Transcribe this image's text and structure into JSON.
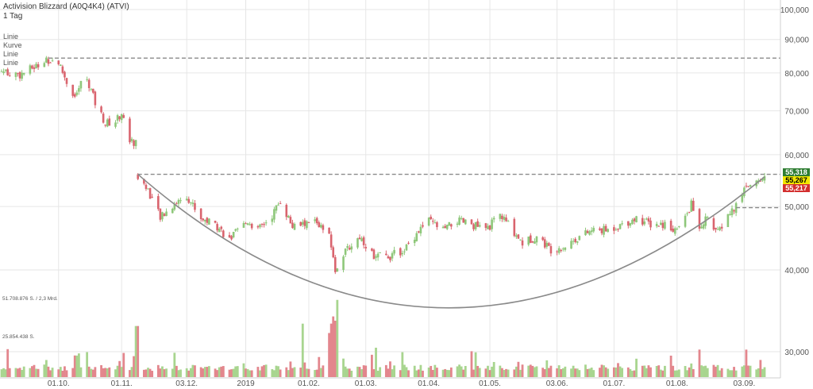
{
  "header": {
    "title": "Activision Blizzard (A0Q4K4) (ATVI)",
    "interval": "1 Tag"
  },
  "drawing_tools": [
    "Linie",
    "Kurve",
    "Linie",
    "Linie"
  ],
  "volume_labels": [
    "51.708.876 S. / 2,3 Mrd.",
    "25.854.438 S."
  ],
  "price_badges": [
    {
      "value": "55,318",
      "bg": "#2e7d32",
      "color": "#ffffff"
    },
    {
      "value": "55,267",
      "bg": "#f2e600",
      "color": "#000000"
    },
    {
      "value": "55,217",
      "bg": "#d32f2f",
      "color": "#ffffff"
    }
  ],
  "colors": {
    "up": "#8ec77a",
    "down": "#d9646e",
    "up_vol": "#a8d58f",
    "down_vol": "#e3868d",
    "grid": "#e6e6e6",
    "drawing": "#8a8a8a"
  },
  "chart_data": {
    "type": "candlestick",
    "ylim": [
      27,
      100
    ],
    "y_scale": "log",
    "yticks": [
      "30,000",
      "40,000",
      "50,000",
      "60,000",
      "70,000",
      "80,000",
      "90,000",
      "100,000"
    ],
    "ytick_values": [
      30,
      40,
      50,
      60,
      70,
      80,
      90,
      100
    ],
    "xticks": [
      "01.10.",
      "01.11.",
      "03.12.",
      "2019",
      "01.02.",
      "01.03.",
      "01.04.",
      "01.05.",
      "03.06.",
      "01.07.",
      "01.08.",
      "03.09."
    ],
    "xtick_dates": [
      "2018-10-01",
      "2018-11-01",
      "2018-12-03",
      "2019-01-01",
      "2019-02-01",
      "2019-03-01",
      "2019-04-01",
      "2019-05-01",
      "2019-06-03",
      "2019-07-01",
      "2019-08-01",
      "2019-09-03"
    ],
    "x_range": [
      "2018-09-03",
      "2019-09-13"
    ],
    "close_path": [
      [
        "2018-09-03",
        80.5
      ],
      [
        "2018-09-12",
        79.5
      ],
      [
        "2018-09-20",
        82.0
      ],
      [
        "2018-09-26",
        83.8
      ],
      [
        "2018-10-01",
        83.0
      ],
      [
        "2018-10-05",
        77.5
      ],
      [
        "2018-10-09",
        73.5
      ],
      [
        "2018-10-12",
        77.0
      ],
      [
        "2018-10-15",
        78.5
      ],
      [
        "2018-10-19",
        72.0
      ],
      [
        "2018-10-24",
        67.0
      ],
      [
        "2018-10-29",
        67.5
      ],
      [
        "2018-11-01",
        69.5
      ],
      [
        "2018-11-05",
        63.0
      ],
      [
        "2018-11-08",
        62.5
      ],
      [
        "2018-11-09",
        55.5
      ],
      [
        "2018-11-14",
        53.0
      ],
      [
        "2018-11-20",
        48.0
      ],
      [
        "2018-11-27",
        50.5
      ],
      [
        "2018-12-03",
        52.0
      ],
      [
        "2018-12-10",
        48.0
      ],
      [
        "2018-12-17",
        47.0
      ],
      [
        "2018-12-24",
        44.5
      ],
      [
        "2019-01-02",
        47.5
      ],
      [
        "2019-01-07",
        46.0
      ],
      [
        "2019-01-14",
        48.5
      ],
      [
        "2019-01-18",
        51.0
      ],
      [
        "2019-01-24",
        46.5
      ],
      [
        "2019-01-30",
        47.0
      ],
      [
        "2019-02-04",
        47.5
      ],
      [
        "2019-02-11",
        45.0
      ],
      [
        "2019-02-14",
        40.0
      ],
      [
        "2019-02-20",
        43.0
      ],
      [
        "2019-02-26",
        45.0
      ],
      [
        "2019-03-05",
        42.0
      ],
      [
        "2019-03-13",
        42.0
      ],
      [
        "2019-03-20",
        43.0
      ],
      [
        "2019-03-27",
        46.0
      ],
      [
        "2019-04-01",
        47.5
      ],
      [
        "2019-04-08",
        46.0
      ],
      [
        "2019-04-15",
        47.5
      ],
      [
        "2019-04-22",
        47.0
      ],
      [
        "2019-04-29",
        46.0
      ],
      [
        "2019-05-06",
        48.5
      ],
      [
        "2019-05-10",
        47.0
      ],
      [
        "2019-05-17",
        44.0
      ],
      [
        "2019-05-24",
        45.0
      ],
      [
        "2019-05-31",
        43.0
      ],
      [
        "2019-06-07",
        43.5
      ],
      [
        "2019-06-14",
        45.0
      ],
      [
        "2019-06-21",
        46.0
      ],
      [
        "2019-06-28",
        46.0
      ],
      [
        "2019-07-05",
        47.0
      ],
      [
        "2019-07-12",
        48.0
      ],
      [
        "2019-07-19",
        47.0
      ],
      [
        "2019-07-26",
        47.0
      ],
      [
        "2019-08-01",
        46.0
      ],
      [
        "2019-08-05",
        48.0
      ],
      [
        "2019-08-08",
        50.5
      ],
      [
        "2019-08-12",
        46.0
      ],
      [
        "2019-08-16",
        48.5
      ],
      [
        "2019-08-21",
        45.5
      ],
      [
        "2019-08-26",
        48.5
      ],
      [
        "2019-08-30",
        50.0
      ],
      [
        "2019-09-04",
        54.0
      ],
      [
        "2019-09-09",
        54.5
      ],
      [
        "2019-09-13",
        55.3
      ]
    ],
    "resistance_lines": [
      {
        "value": 84.3,
        "from": "2018-09-26",
        "to": "2019-09-13"
      },
      {
        "value": 56.0,
        "from": "2018-11-09",
        "to": "2019-09-13"
      },
      {
        "value": 49.8,
        "from": "2019-08-30",
        "to": "2019-09-13"
      }
    ],
    "arc_curve": {
      "start": [
        "2018-11-09",
        56.0
      ],
      "bottom": [
        "2019-04-10",
        35.0
      ],
      "end": [
        "2019-09-13",
        55.5
      ]
    },
    "volume_scale_max": 51708876,
    "volume_ticks": [
      51708876,
      25854438
    ]
  }
}
